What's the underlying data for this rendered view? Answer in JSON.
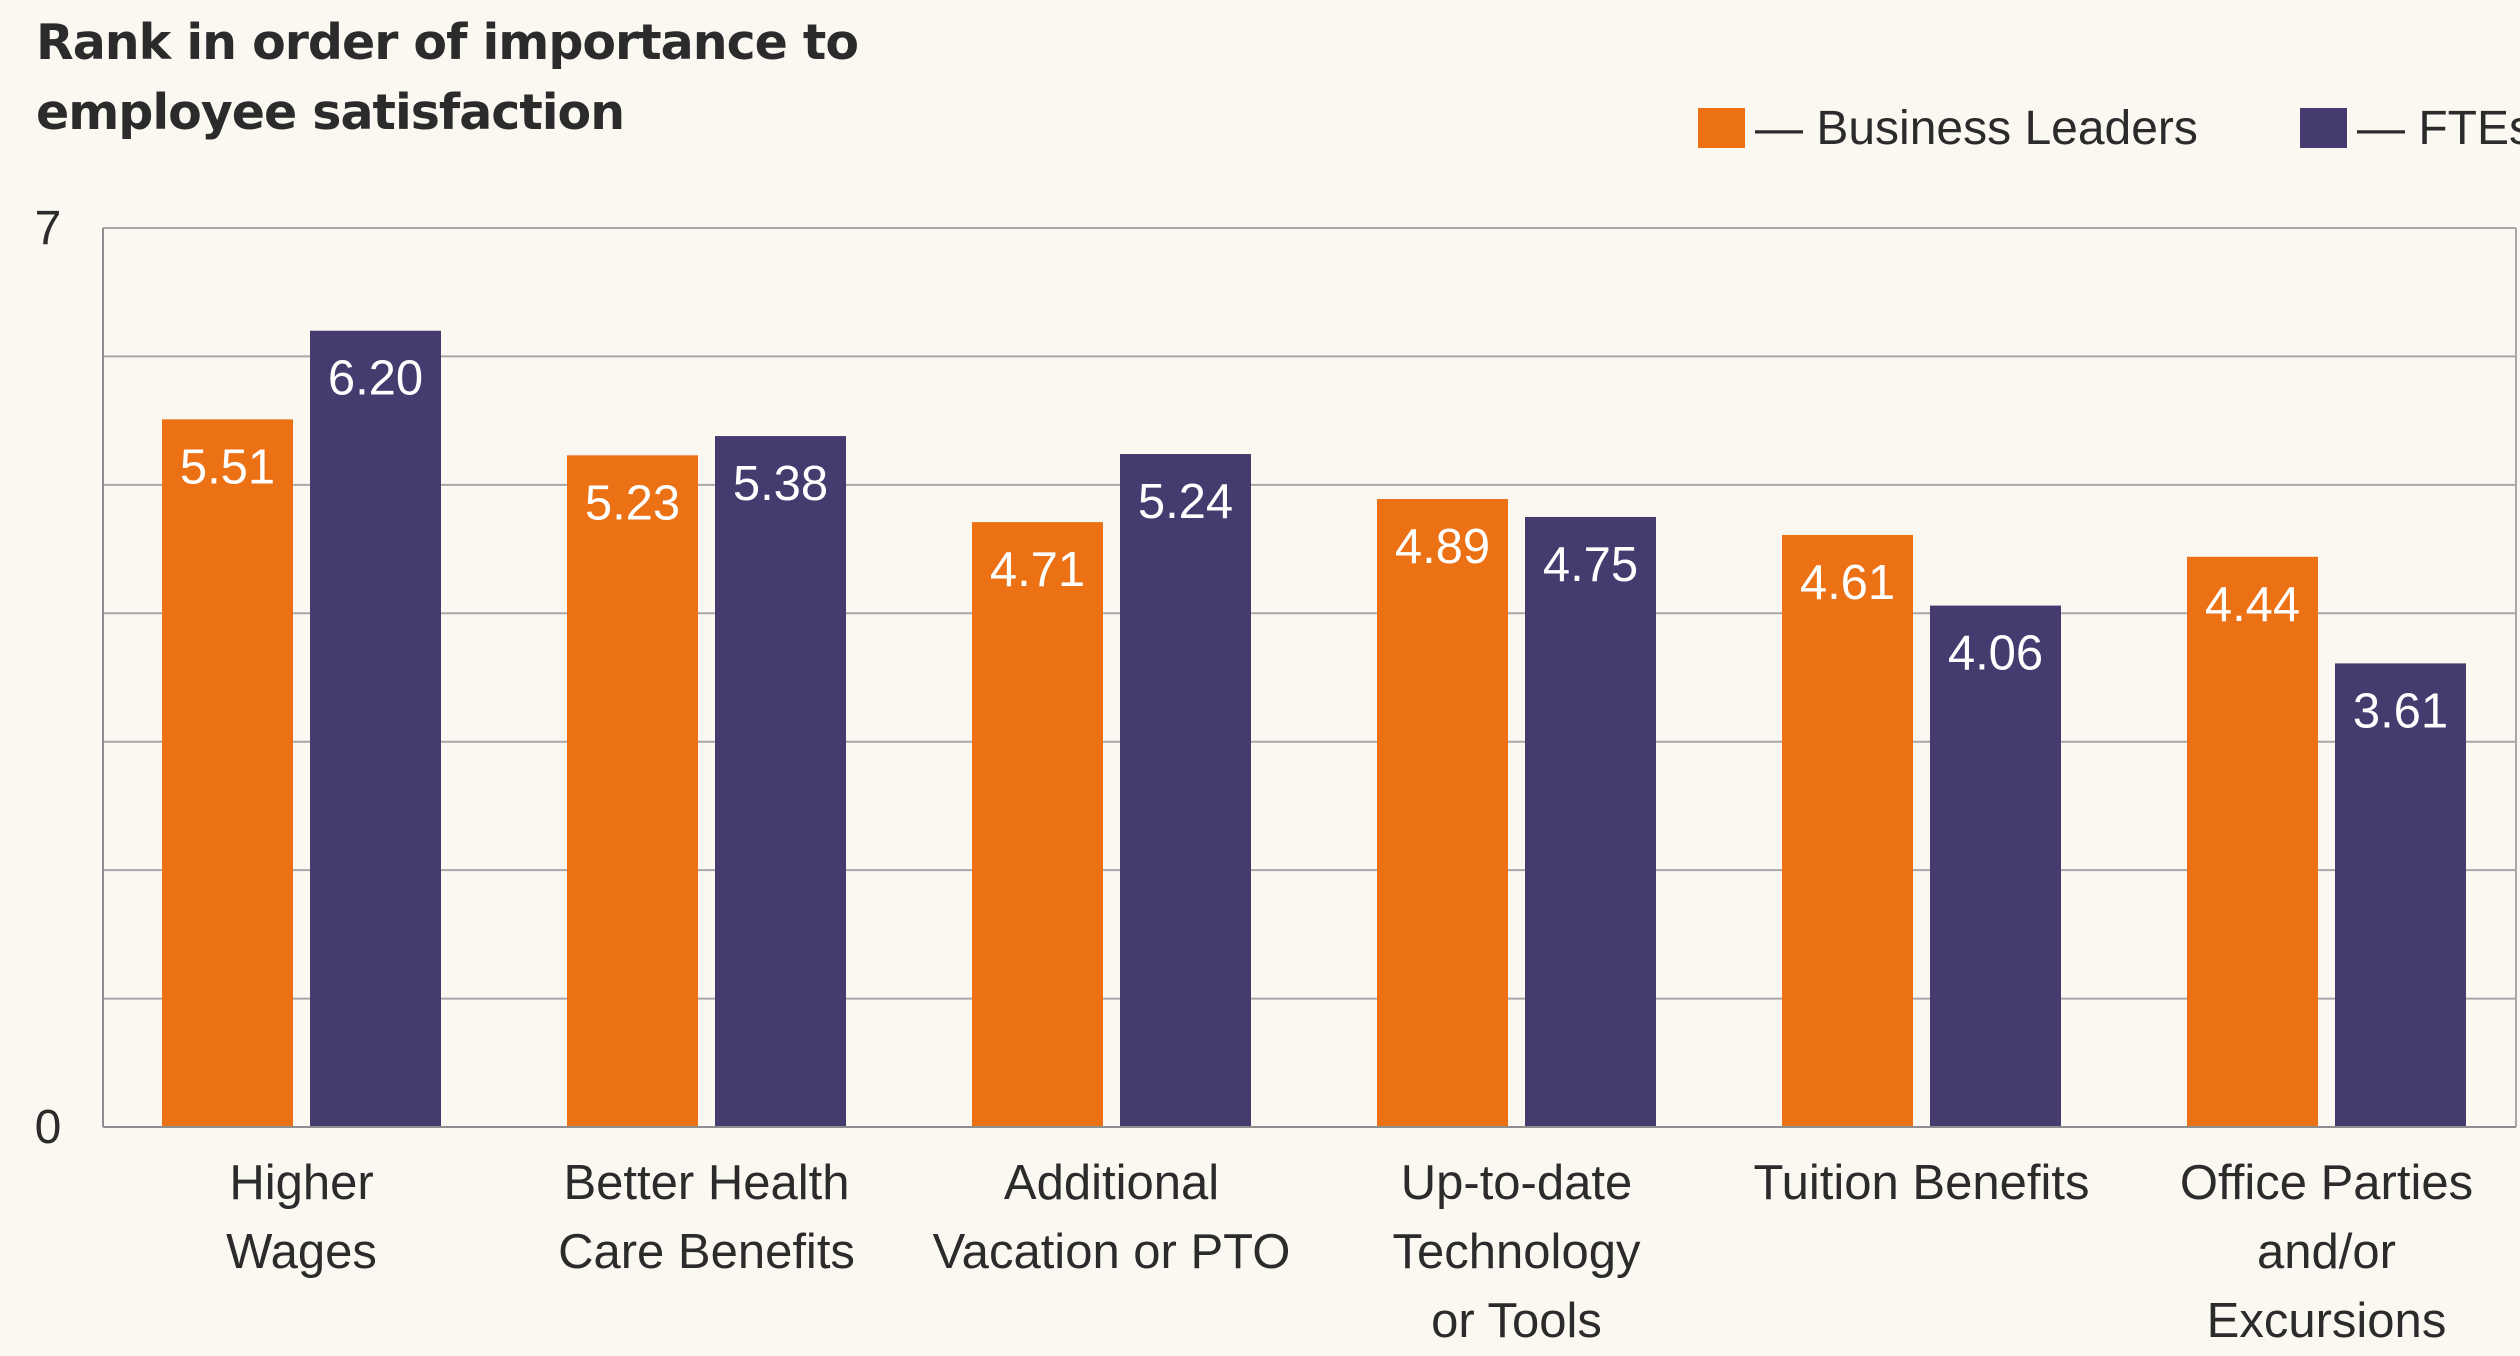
{
  "chart_data": {
    "type": "bar",
    "title": "Rank in order of importance to employee satisfaction",
    "categories": [
      [
        "Higher",
        "Wages"
      ],
      [
        "Better Health",
        "Care Benefits"
      ],
      [
        "Additional",
        "Vacation or PTO"
      ],
      [
        "Up-to-date",
        "Technology",
        "or Tools"
      ],
      [
        "Tuition Benefits"
      ],
      [
        "Office Parties",
        "and/or",
        "Excursions"
      ]
    ],
    "series": [
      {
        "name": "— Business Leaders",
        "color": "#ec7014",
        "values": [
          5.51,
          5.23,
          4.71,
          4.89,
          4.61,
          4.44
        ],
        "labels": [
          "5.51",
          "5.23",
          "4.71",
          "4.89",
          "4.61",
          "4.44"
        ]
      },
      {
        "name": "— FTEs",
        "color": "#463b6f",
        "values": [
          6.2,
          5.38,
          5.24,
          4.75,
          4.06,
          3.61
        ],
        "labels": [
          "6.20",
          "5.38",
          "5.24",
          "4.75",
          "4.06",
          "3.61"
        ]
      }
    ],
    "ylim": [
      0,
      7
    ],
    "yticks": [
      0,
      7
    ],
    "yticks_labels": [
      "0",
      "7"
    ],
    "gridlines": [
      1,
      2,
      3,
      4,
      5,
      6,
      7
    ],
    "grid": true,
    "legend_position": "top-right",
    "xlabel": "",
    "ylabel": ""
  }
}
